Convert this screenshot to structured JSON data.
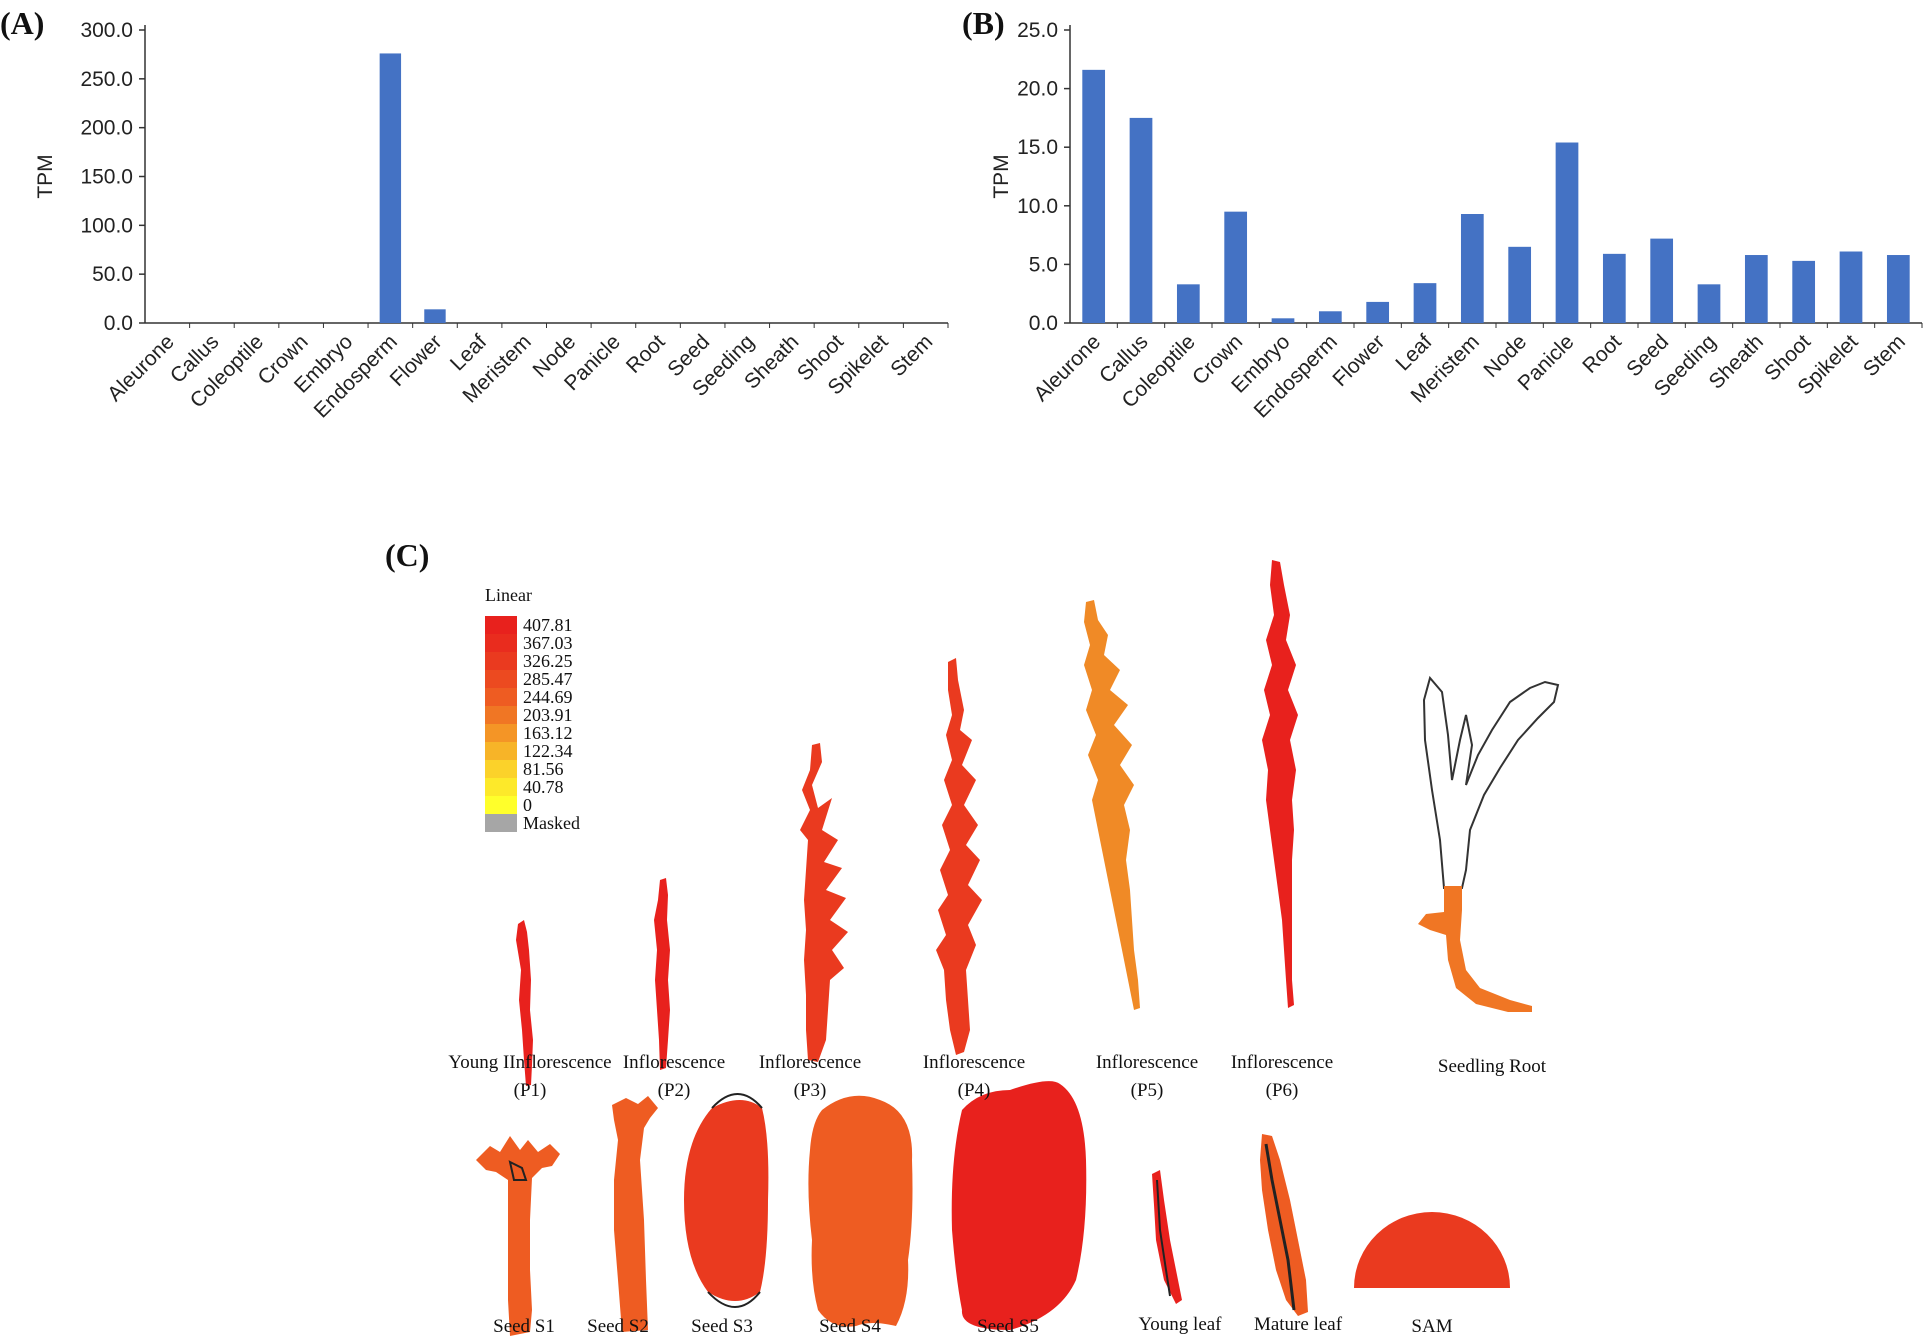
{
  "colors": {
    "bar": "#4472c4",
    "axis": "#333333"
  },
  "panels": {
    "a": "(A)",
    "b": "(B)",
    "c": "(C)"
  },
  "chart_data": [
    {
      "type": "bar",
      "ylabel": "TPM",
      "ylim": [
        0,
        300
      ],
      "yticks": [
        "300.0",
        "250.0",
        "200.0",
        "150.0",
        "100.0",
        "50.0",
        "0.0"
      ],
      "categories": [
        "Aleurone",
        "Callus",
        "Coleoptile",
        "Crown",
        "Embryo",
        "Endosperm",
        "Flower",
        "Leaf",
        "Meristem",
        "Node",
        "Panicle",
        "Root",
        "Seed",
        "Seeding",
        "Sheath",
        "Shoot",
        "Spikelet",
        "Stem"
      ],
      "values": [
        0,
        0,
        0,
        0,
        0,
        276,
        14,
        0,
        0,
        0,
        0,
        0,
        0,
        0,
        0,
        0,
        0,
        0
      ]
    },
    {
      "type": "bar",
      "ylabel": "TPM",
      "ylim": [
        0,
        25
      ],
      "yticks": [
        "25.0",
        "20.0",
        "15.0",
        "10.0",
        "5.0",
        "0.0"
      ],
      "categories": [
        "Aleurone",
        "Callus",
        "Coleoptile",
        "Crown",
        "Embryo",
        "Endosperm",
        "Flower",
        "Leaf",
        "Meristem",
        "Node",
        "Panicle",
        "Root",
        "Seed",
        "Seeding",
        "Sheath",
        "Shoot",
        "Spikelet",
        "Stem"
      ],
      "values": [
        21.6,
        17.5,
        3.3,
        9.5,
        0.4,
        1.0,
        1.8,
        3.4,
        9.3,
        6.5,
        15.4,
        5.9,
        7.2,
        3.3,
        5.8,
        5.3,
        6.1,
        5.8
      ]
    }
  ],
  "legend": {
    "title": "Linear",
    "items": [
      {
        "label": "407.81",
        "color": "#e8211d"
      },
      {
        "label": "367.03",
        "color": "#e92c1e"
      },
      {
        "label": "326.25",
        "color": "#ea3a1f"
      },
      {
        "label": "285.47",
        "color": "#ec4a20"
      },
      {
        "label": "244.69",
        "color": "#ee5c22"
      },
      {
        "label": "203.91",
        "color": "#f07624"
      },
      {
        "label": "163.12",
        "color": "#f49526"
      },
      {
        "label": "122.34",
        "color": "#f7b428"
      },
      {
        "label": "81.56",
        "color": "#fbd22a"
      },
      {
        "label": "40.78",
        "color": "#fde92a"
      },
      {
        "label": "0",
        "color": "#ffff2b"
      },
      {
        "label": "Masked",
        "color": "#a6a6a6"
      }
    ]
  },
  "organs": {
    "p1": {
      "line1": "Young IInflorescence",
      "line2": "(P1)",
      "color": "#e8211d"
    },
    "p2": {
      "line1": "Inflorescence",
      "line2": "(P2)",
      "color": "#e8211d"
    },
    "p3": {
      "line1": "Inflorescence",
      "line2": "(P3)",
      "color": "#ea3a1f"
    },
    "p4": {
      "line1": "Inflorescence",
      "line2": "(P4)",
      "color": "#ea3a1f"
    },
    "p5": {
      "line1": "Inflorescence",
      "line2": "(P5)",
      "color": "#f08a26"
    },
    "p6": {
      "line1": "Inflorescence",
      "line2": "(P6)",
      "color": "#e8211d"
    },
    "root": {
      "label": "Seedling Root",
      "color": "#f07624"
    },
    "s1": {
      "label": "Seed S1",
      "color": "#ee5c22"
    },
    "s2": {
      "label": "Seed S2",
      "color": "#ee5c22"
    },
    "s3": {
      "label": "Seed S3",
      "color": "#ea3a1f"
    },
    "s4": {
      "label": "Seed S4",
      "color": "#ee5c22"
    },
    "s5": {
      "label": "Seed S5",
      "color": "#e8211d"
    },
    "yleaf": {
      "label": "Young leaf",
      "color": "#e8211d"
    },
    "mleaf": {
      "label": "Mature leaf",
      "color": "#ee5c22"
    },
    "sam": {
      "label": "SAM",
      "color": "#ea3a1f"
    }
  }
}
